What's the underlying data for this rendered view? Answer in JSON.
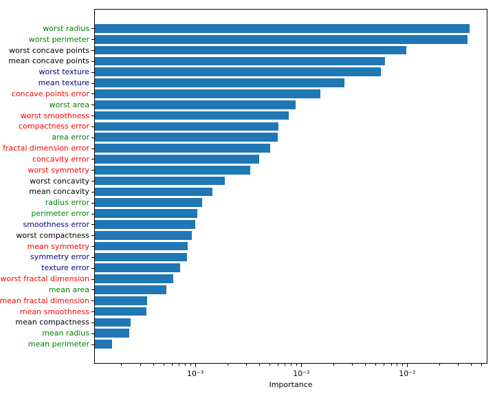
{
  "chart_data": {
    "type": "bar",
    "orientation": "horizontal",
    "xscale": "log",
    "title": "",
    "xlabel": "Importance",
    "ylabel": "",
    "legend": null,
    "grid": false,
    "bar_color": "#1f77b4",
    "xlim": [
      0.000111,
      0.571
    ],
    "x_major_ticks": [
      {
        "value": 0.001,
        "label": "10⁻³"
      },
      {
        "value": 0.01,
        "label": "10⁻²"
      },
      {
        "value": 0.1,
        "label": "10⁻¹"
      }
    ],
    "label_color_palette": {
      "green": "#008000",
      "black": "#000000",
      "navy": "#000080",
      "red": "#ff0000"
    },
    "categories": [
      "worst radius",
      "worst perimeter",
      "worst concave points",
      "mean concave points",
      "worst texture",
      "mean texture",
      "concave points error",
      "worst area",
      "worst smoothness",
      "compactness error",
      "area error",
      "fractal dimension error",
      "concavity error",
      "worst symmetry",
      "worst concavity",
      "mean concavity",
      "radius error",
      "perimeter error",
      "smoothness error",
      "worst compactness",
      "mean symmetry",
      "symmetry error",
      "texture error",
      "worst fractal dimension",
      "mean area",
      "mean fractal dimension",
      "mean smoothness",
      "mean compactness",
      "mean radius",
      "mean perimeter"
    ],
    "values": [
      0.386,
      0.371,
      0.098,
      0.062,
      0.056,
      0.0256,
      0.0152,
      0.0089,
      0.0076,
      0.0061,
      0.006,
      0.0051,
      0.004,
      0.0033,
      0.0019,
      0.00145,
      0.00116,
      0.00104,
      0.000995,
      0.00093,
      0.00085,
      0.00084,
      0.00072,
      0.00062,
      0.00053,
      0.00035,
      0.000345,
      0.000246,
      0.000239,
      0.000164
    ],
    "label_colors": [
      "#008000",
      "#008000",
      "#000000",
      "#000000",
      "#000080",
      "#000080",
      "#ff0000",
      "#008000",
      "#ff0000",
      "#ff0000",
      "#008000",
      "#ff0000",
      "#ff0000",
      "#ff0000",
      "#000000",
      "#000000",
      "#008000",
      "#008000",
      "#000080",
      "#000000",
      "#ff0000",
      "#000080",
      "#000080",
      "#ff0000",
      "#008000",
      "#ff0000",
      "#ff0000",
      "#000000",
      "#008000",
      "#008000"
    ]
  }
}
